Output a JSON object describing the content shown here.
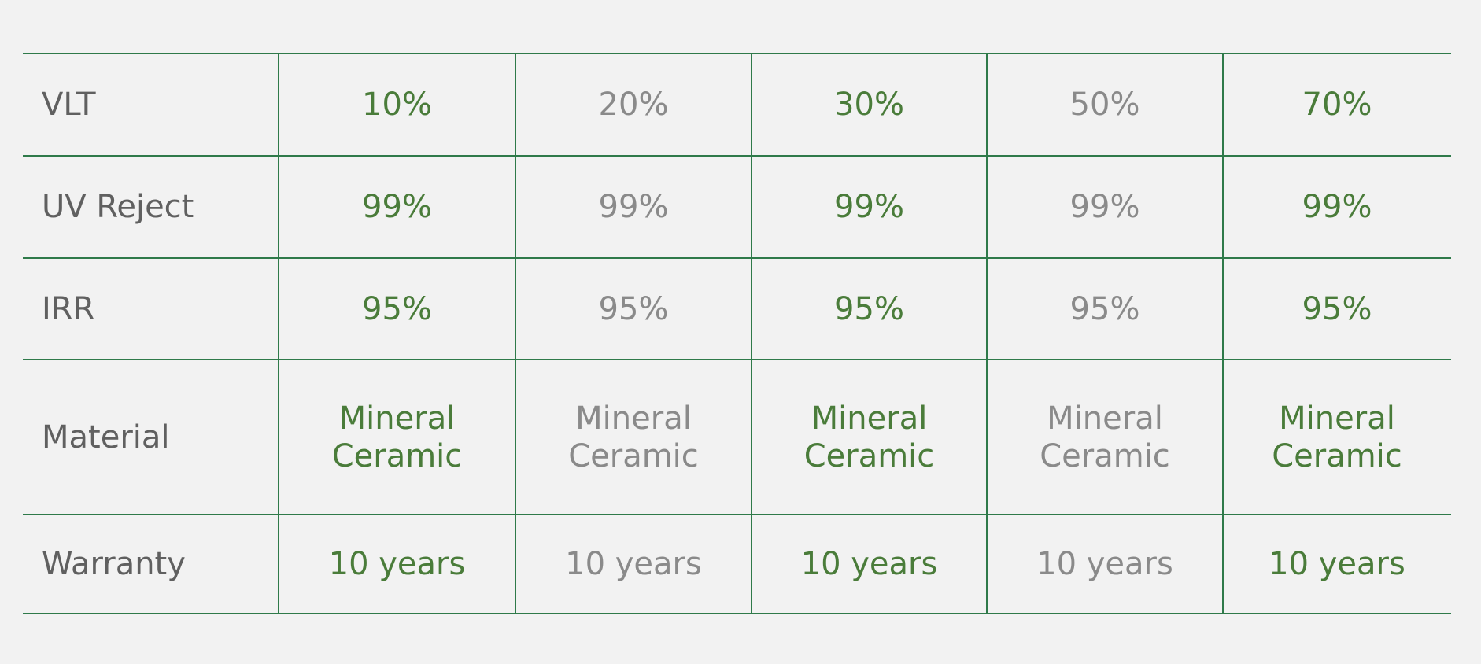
{
  "table": {
    "rows": [
      [
        "VLT",
        "10%",
        "20%",
        "30%",
        "50%",
        "70%"
      ],
      [
        "UV Reject",
        "99%",
        "99%",
        "99%",
        "99%",
        "99%"
      ],
      [
        "IRR",
        "95%",
        "95%",
        "95%",
        "95%",
        "95%"
      ],
      [
        "Material",
        "Mineral Ceramic",
        "Mineral Ceramic",
        "Mineral Ceramic",
        "Mineral Ceramic",
        "Mineral Ceramic"
      ],
      [
        "Warranty",
        "10 years",
        "10 years",
        "10 years",
        "10 years",
        "10 years"
      ]
    ]
  }
}
